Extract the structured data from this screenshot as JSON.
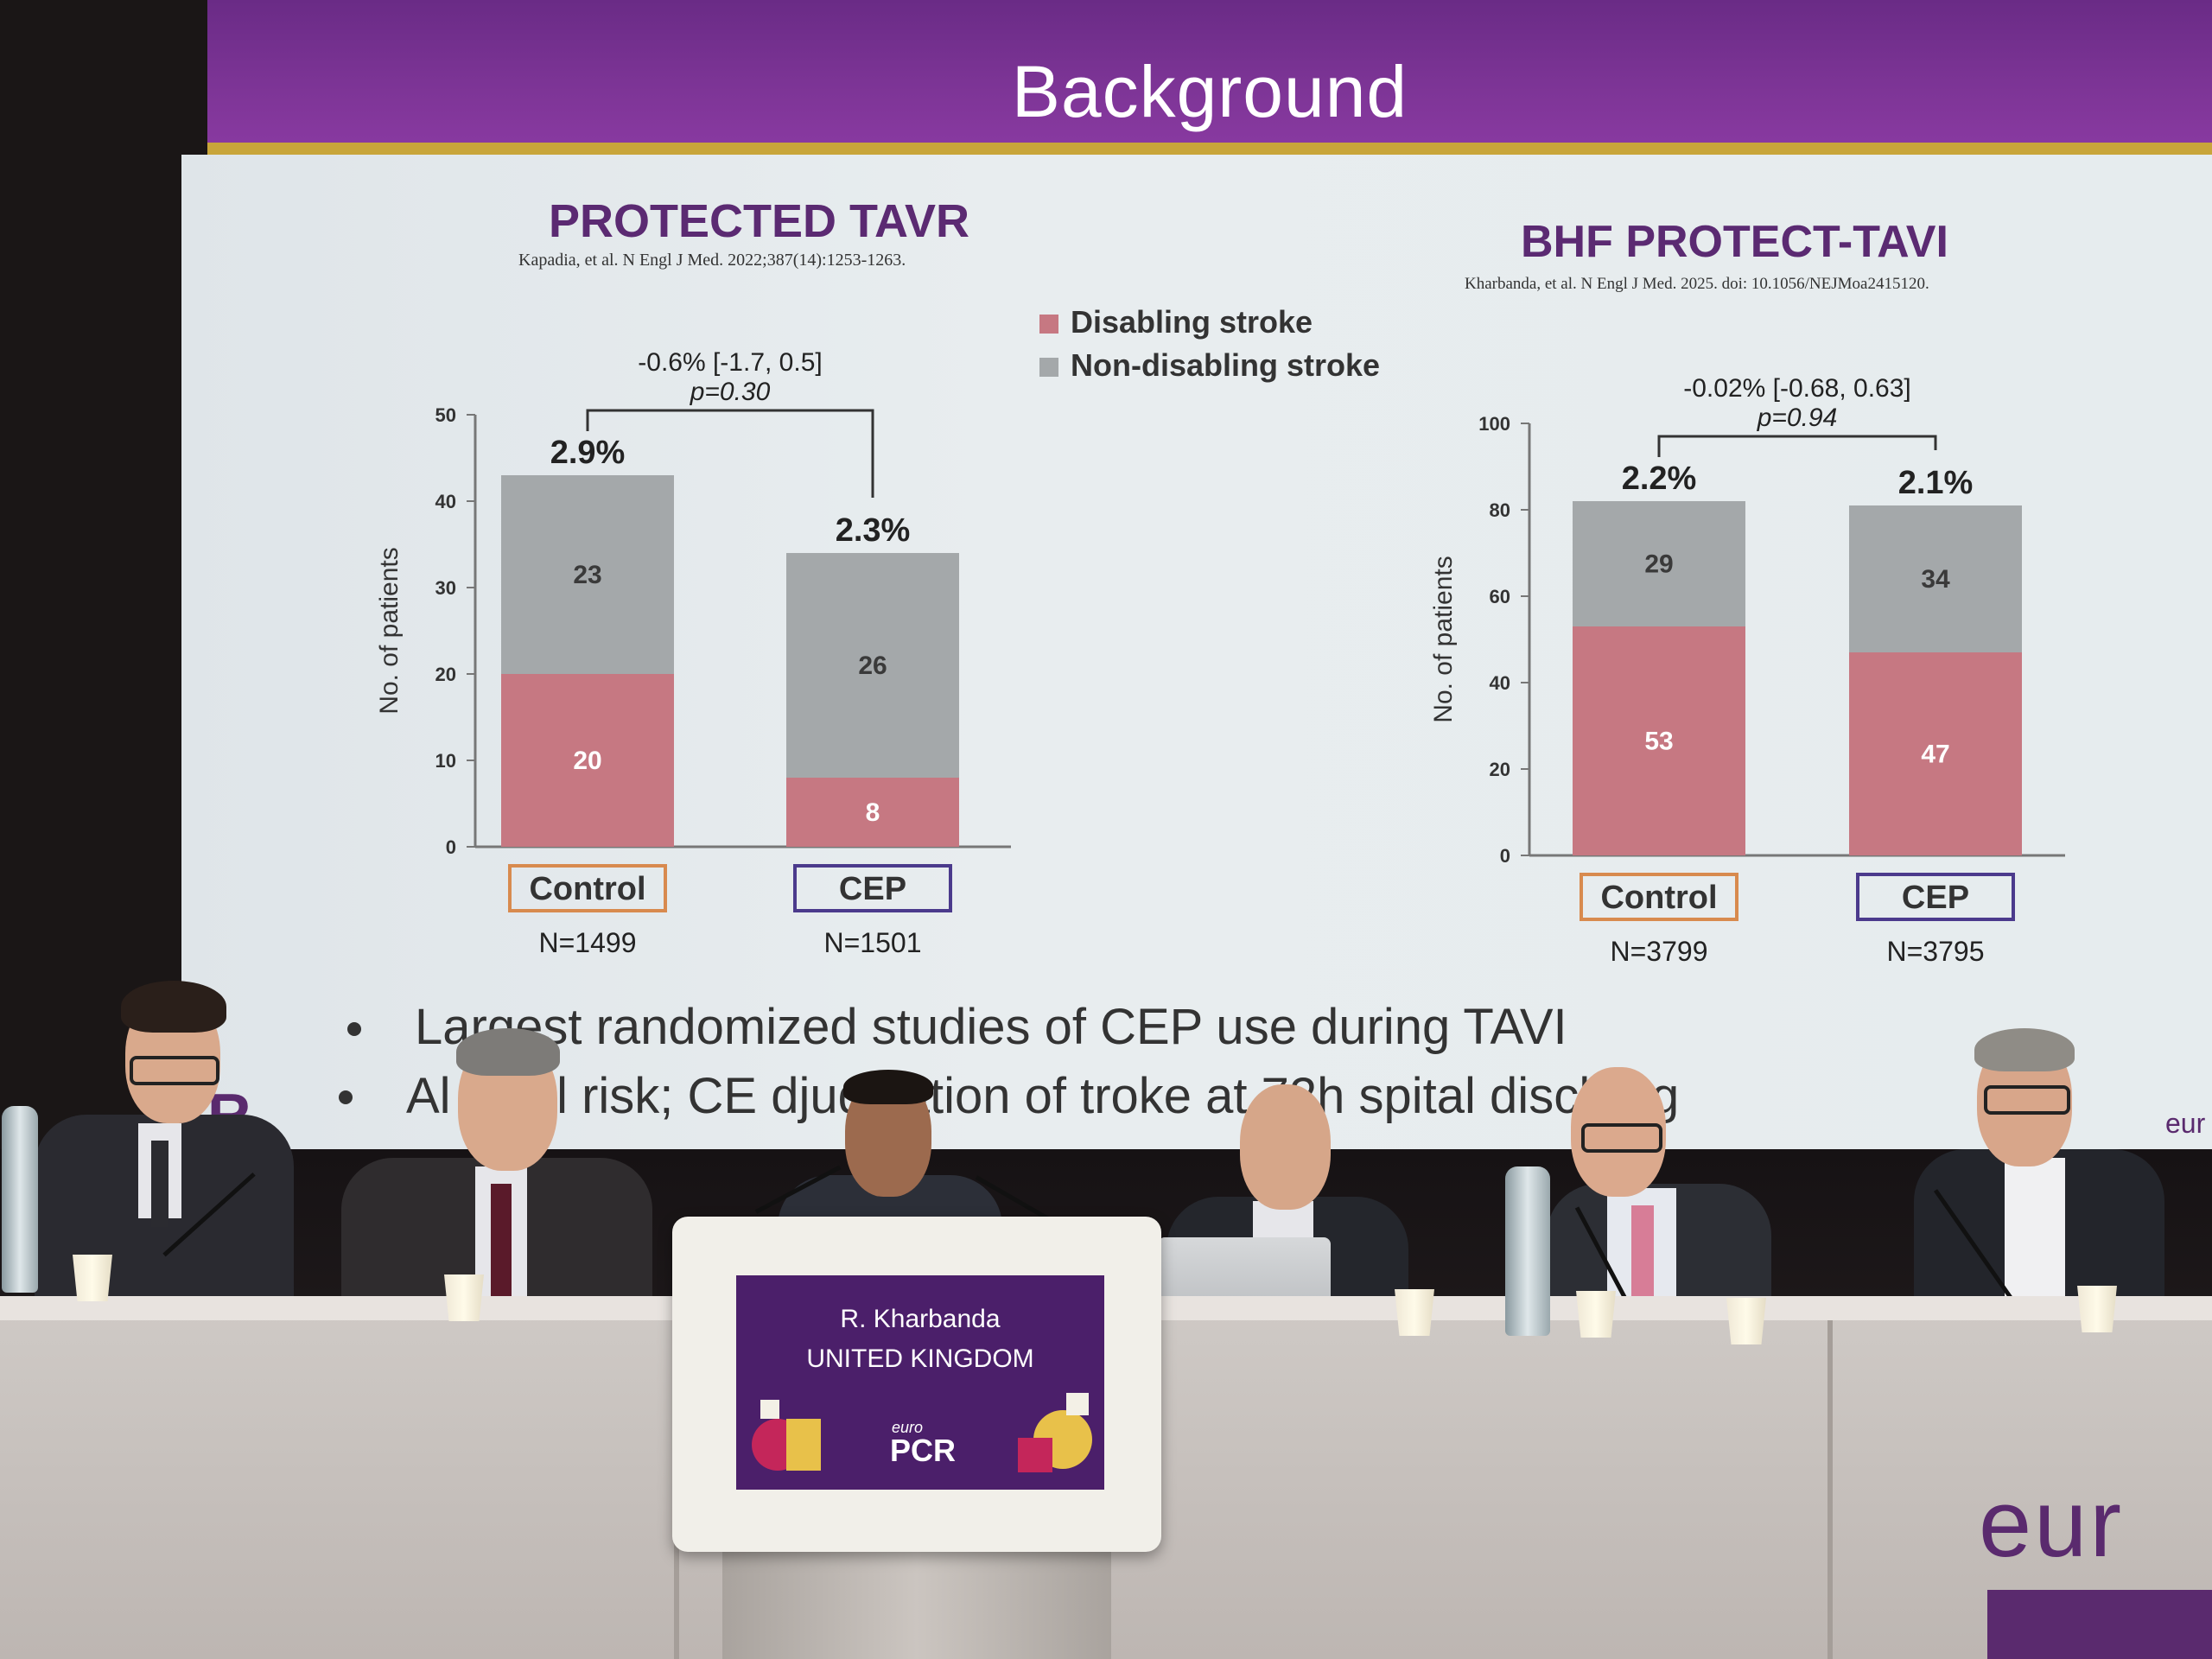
{
  "slide": {
    "title": "Background",
    "legend": [
      {
        "label": "Disabling stroke",
        "color": "#c67882"
      },
      {
        "label": "Non-disabling stroke",
        "color": "#a4a8aa"
      }
    ],
    "bullets": [
      "Largest randomized studies of CEP use during TAVI",
      "Al   gical risk; CE  djudication of  troke at 72h   spital discharg"
    ],
    "side_logo": "R",
    "side_text": "eur"
  },
  "chart_data": [
    {
      "type": "bar",
      "stacked": true,
      "title": "PROTECTED TAVR",
      "citation": "Kapadia, et al. N Engl J Med. 2022;387(14):1253-1263.",
      "ylabel": "No. of patients",
      "ylim": [
        0,
        50
      ],
      "yticks": [
        0,
        10,
        20,
        30,
        40,
        50
      ],
      "categories": [
        "Control",
        "CEP"
      ],
      "n_labels": [
        "N=1499",
        "N=1501"
      ],
      "category_colors": [
        "#d88a4e",
        "#4b3a8c"
      ],
      "series": [
        {
          "name": "Disabling stroke",
          "values": [
            20,
            8
          ],
          "color": "#c67882"
        },
        {
          "name": "Non-disabling stroke",
          "values": [
            23,
            26
          ],
          "color": "#a4a8aa"
        }
      ],
      "percent_labels": [
        "2.9%",
        "2.3%"
      ],
      "difference_text": "-0.6% [-1.7, 0.5]",
      "p_value_text": "p=0.30"
    },
    {
      "type": "bar",
      "stacked": true,
      "title": "BHF PROTECT-TAVI",
      "citation": "Kharbanda, et al. N Engl J Med. 2025. doi: 10.1056/NEJMoa2415120.",
      "ylabel": "No. of patients",
      "ylim": [
        0,
        100
      ],
      "yticks": [
        0,
        20,
        40,
        60,
        80,
        100
      ],
      "categories": [
        "Control",
        "CEP"
      ],
      "n_labels": [
        "N=3799",
        "N=3795"
      ],
      "category_colors": [
        "#d88a4e",
        "#4b3a8c"
      ],
      "series": [
        {
          "name": "Disabling stroke",
          "values": [
            53,
            47
          ],
          "color": "#c67882"
        },
        {
          "name": "Non-disabling stroke",
          "values": [
            29,
            34
          ],
          "color": "#a4a8aa"
        }
      ],
      "percent_labels": [
        "2.2%",
        "2.1%"
      ],
      "difference_text": "-0.02% [-0.68, 0.63]",
      "p_value_text": "p=0.94"
    }
  ],
  "podium": {
    "speaker_name": "R. Kharbanda",
    "speaker_country": "UNITED KINGDOM",
    "logo_small": "euro",
    "logo_large": "PCR"
  },
  "stage": {
    "brand_text": "eur"
  }
}
